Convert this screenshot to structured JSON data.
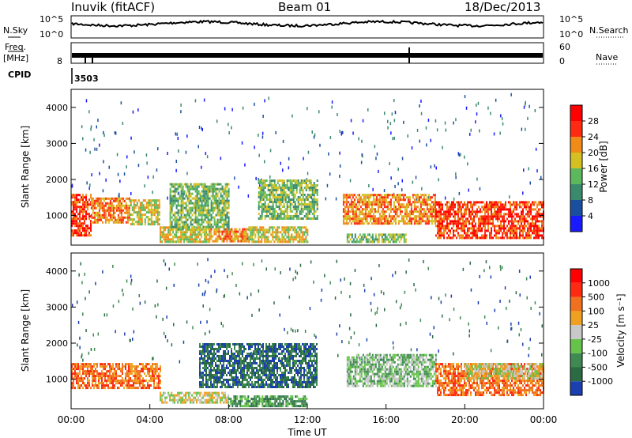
{
  "header": {
    "station": "Inuvik (fitACF)",
    "beam": "Beam 01",
    "date": "18/Dec/2013"
  },
  "params": {
    "nsky_label": "N.Sky",
    "nsky_ticks": [
      "10^5",
      "10^0"
    ],
    "nsearch_label": "N.Search",
    "nsearch_ticks": [
      "10^5",
      "10^0"
    ],
    "freq_label_1": "Freq.",
    "freq_label_2": "[MHz]",
    "freq_ticks": [
      "8"
    ],
    "nave_label": "Nave",
    "nave_ticks": [
      "60",
      "0"
    ],
    "cpid_label": "CPID",
    "cpid_value": "3503"
  },
  "chart_data": [
    {
      "type": "heatmap",
      "name": "power",
      "ylabel": "Slant Range [km]",
      "ylim": [
        180,
        4500
      ],
      "yticks": [
        1000,
        2000,
        3000,
        4000
      ],
      "colorbar_label": "Power [dB]",
      "colorbar_ticks": [
        "4",
        "8",
        "12",
        "16",
        "20",
        "24",
        "28"
      ],
      "colorbar_colors": [
        "#1a1aff",
        "#1a4fa0",
        "#3a8a6e",
        "#5cb85c",
        "#d4c020",
        "#f08a18",
        "#ff2a12",
        "#ff0000"
      ],
      "bands": [
        {
          "t": [
            0.0,
            1.0
          ],
          "r": [
            450,
            1600
          ],
          "level": 6
        },
        {
          "t": [
            1.0,
            3.0
          ],
          "r": [
            800,
            1500
          ],
          "level": 5
        },
        {
          "t": [
            3.0,
            4.5
          ],
          "r": [
            750,
            1450
          ],
          "level": 4
        },
        {
          "t": [
            4.5,
            7.0
          ],
          "r": [
            250,
            700
          ],
          "level": 4
        },
        {
          "t": [
            5.0,
            8.0
          ],
          "r": [
            600,
            1900
          ],
          "level": 3
        },
        {
          "t": [
            7.0,
            9.0
          ],
          "r": [
            300,
            650
          ],
          "level": 5
        },
        {
          "t": [
            9.0,
            12.0
          ],
          "r": [
            300,
            700
          ],
          "level": 4
        },
        {
          "t": [
            9.5,
            12.5
          ],
          "r": [
            900,
            2000
          ],
          "level": 3
        },
        {
          "t": [
            13.8,
            18.5
          ],
          "r": [
            800,
            1600
          ],
          "level": 5
        },
        {
          "t": [
            14.0,
            17.0
          ],
          "r": [
            250,
            500
          ],
          "level": 3
        },
        {
          "t": [
            18.5,
            24.0
          ],
          "r": [
            350,
            1400
          ],
          "level": 6
        }
      ]
    },
    {
      "type": "heatmap",
      "name": "velocity",
      "ylabel": "Slant Range [km]",
      "ylim": [
        180,
        4500
      ],
      "yticks": [
        1000,
        2000,
        3000,
        4000
      ],
      "xlabel": "Time UT",
      "xticks": [
        "00:00",
        "04:00",
        "08:00",
        "12:00",
        "16:00",
        "20:00",
        "00:00"
      ],
      "colorbar_label": "Velocity [m s⁻¹]",
      "colorbar_ticks": [
        "1000",
        "500",
        "100",
        "25",
        "-25",
        "-100",
        "-500",
        "-1000"
      ],
      "colorbar_colors": [
        "#1c3fb0",
        "#2a6b44",
        "#3f8a52",
        "#66c34a",
        "#c8c8c8",
        "#f0a020",
        "#f07020",
        "#ff2a12",
        "#ff0000"
      ],
      "bands": [
        {
          "t": [
            0.0,
            4.5
          ],
          "r": [
            750,
            1450
          ],
          "level": 6
        },
        {
          "t": [
            4.5,
            8.0
          ],
          "r": [
            350,
            650
          ],
          "level": 4
        },
        {
          "t": [
            6.5,
            12.5
          ],
          "r": [
            800,
            2000
          ],
          "level": 1
        },
        {
          "t": [
            8.0,
            12.0
          ],
          "r": [
            280,
            550
          ],
          "level": 2
        },
        {
          "t": [
            14.0,
            18.5
          ],
          "r": [
            800,
            1700
          ],
          "level": 3
        },
        {
          "t": [
            18.5,
            24.0
          ],
          "r": [
            550,
            1450
          ],
          "level": 6
        },
        {
          "t": [
            20.0,
            24.0
          ],
          "r": [
            1000,
            1450
          ],
          "level": 4
        }
      ]
    }
  ],
  "colors": {
    "axis": "#000000",
    "background": "#ffffff"
  }
}
